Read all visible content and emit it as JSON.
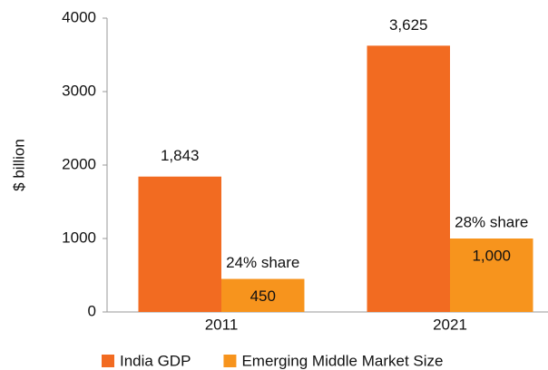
{
  "chart_data": {
    "type": "bar",
    "y_label": "$ billion",
    "categories": [
      "2011",
      "2021"
    ],
    "series": [
      {
        "name": "India GDP",
        "color": "#f26b21",
        "values": [
          1843,
          3625
        ],
        "value_labels": [
          "1,843",
          "3,625"
        ]
      },
      {
        "name": "Emerging Middle Market Size",
        "color": "#f7941d",
        "values": [
          450,
          1000
        ],
        "value_labels": [
          "450",
          "1,000"
        ]
      }
    ],
    "annotations": [
      "24% share",
      "28% share"
    ],
    "ylim": [
      0,
      4000
    ],
    "yticks": [
      0,
      1000,
      2000,
      3000,
      4000
    ],
    "grid": false,
    "legend": "bottom"
  }
}
